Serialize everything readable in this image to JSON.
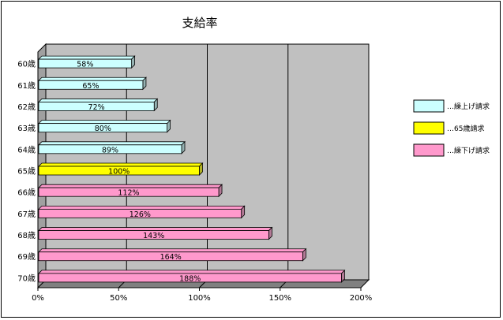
{
  "chart_data": {
    "type": "bar",
    "orientation": "horizontal",
    "title": "支給率",
    "xlabel": "",
    "ylabel": "",
    "categories": [
      "60歳",
      "61歳",
      "62歳",
      "63歳",
      "64歳",
      "65歳",
      "66歳",
      "67歳",
      "68歳",
      "69歳",
      "70歳"
    ],
    "values": [
      58,
      65,
      72,
      80,
      89,
      100,
      112,
      126,
      143,
      164,
      188
    ],
    "data_labels": [
      "58%",
      "65%",
      "72%",
      "80%",
      "89%",
      "100%",
      "112%",
      "126%",
      "143%",
      "164%",
      "188%"
    ],
    "bar_group": [
      0,
      0,
      0,
      0,
      0,
      1,
      2,
      2,
      2,
      2,
      2
    ],
    "xlim": [
      0,
      200
    ],
    "xticks": [
      0,
      50,
      100,
      150,
      200
    ],
    "xtick_labels": [
      "0%",
      "50%",
      "100%",
      "150%",
      "200%"
    ],
    "grid": true,
    "plot_background": "#c0c0c0",
    "legend_position": "right",
    "legend": [
      {
        "label": "…繰上げ請求",
        "color": "#ccffff"
      },
      {
        "label": "…65歳請求",
        "color": "#ffff00"
      },
      {
        "label": "…繰下げ請求",
        "color": "#ff99cc"
      }
    ]
  }
}
